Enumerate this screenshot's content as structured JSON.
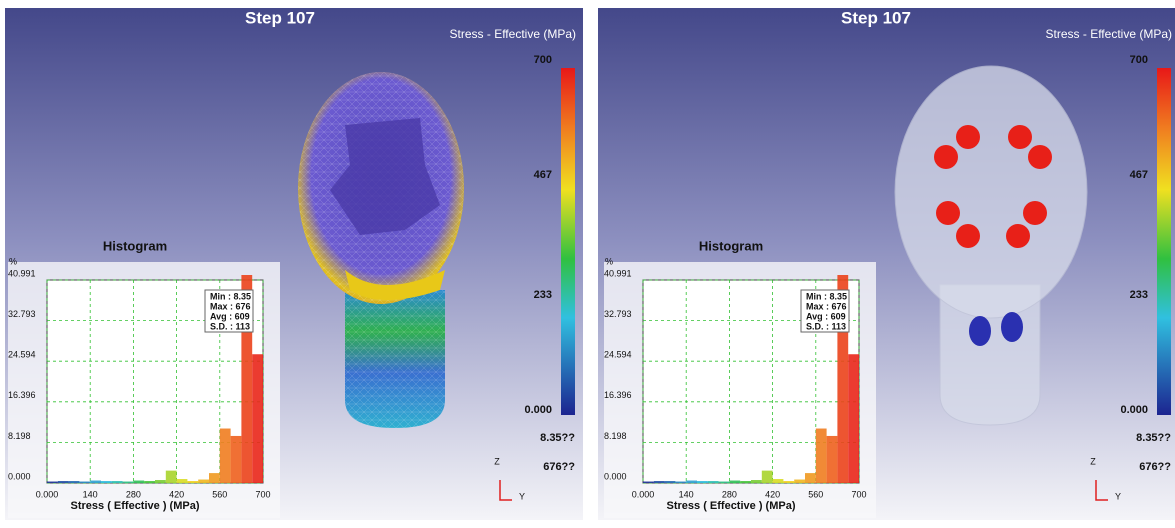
{
  "panels": [
    {
      "title": "Step 107",
      "legend": {
        "title": "Stress - Effective (MPa)",
        "labels": [
          "700",
          "467",
          "233",
          "0.000"
        ],
        "min_label": "8.35??",
        "max_label": "676??"
      },
      "histogram": {
        "title": "Histogram",
        "y_label": "%",
        "x_label": "Stress ( Effective ) (MPa)",
        "stats": [
          "Min : 8.35",
          "Max : 676",
          "Avg : 609",
          "S.D. : 113"
        ],
        "xlim": [
          0,
          700
        ],
        "ylim": [
          0,
          40.991
        ],
        "xticks": [
          {
            "value": 0,
            "label": "0.000"
          },
          140,
          280,
          420,
          560,
          700
        ],
        "yticks": [
          {
            "value": 0,
            "label": "0.000"
          },
          8.198,
          16.396,
          24.594,
          32.793,
          40.991
        ],
        "bins": [
          0,
          35,
          70,
          105,
          140,
          175,
          210,
          245,
          280,
          315,
          350,
          385,
          420,
          455,
          490,
          525,
          560,
          595,
          630,
          665,
          700
        ],
        "values": [
          0.3,
          0.4,
          0.4,
          0.3,
          0.5,
          0.4,
          0.4,
          0.3,
          0.5,
          0.4,
          0.6,
          2.5,
          0.8,
          0.4,
          0.7,
          2.0,
          11.0,
          9.5,
          42.0,
          26.0
        ]
      },
      "triad": {
        "z": "Z",
        "y": "Y"
      }
    },
    {
      "title": "Step 107",
      "legend": {
        "title": "Stress - Effective (MPa)",
        "labels": [
          "700",
          "467",
          "233",
          "0.000"
        ],
        "min_label": "8.35??",
        "max_label": "676??"
      },
      "histogram": {
        "title": "Histogram",
        "y_label": "%",
        "x_label": "Stress ( Effective ) (MPa)",
        "stats": [
          "Min : 8.35",
          "Max : 676",
          "Avg : 609",
          "S.D. : 113"
        ],
        "xlim": [
          0,
          700
        ],
        "ylim": [
          0,
          40.991
        ],
        "xticks": [
          {
            "value": 0,
            "label": "0.000"
          },
          140,
          280,
          420,
          560,
          700
        ],
        "yticks": [
          {
            "value": 0,
            "label": "0.000"
          },
          8.198,
          16.396,
          24.594,
          32.793,
          40.991
        ],
        "bins": [
          0,
          35,
          70,
          105,
          140,
          175,
          210,
          245,
          280,
          315,
          350,
          385,
          420,
          455,
          490,
          525,
          560,
          595,
          630,
          665,
          700
        ],
        "values": [
          0.3,
          0.4,
          0.4,
          0.3,
          0.5,
          0.4,
          0.4,
          0.3,
          0.5,
          0.4,
          0.6,
          2.5,
          0.8,
          0.4,
          0.7,
          2.0,
          11.0,
          9.5,
          42.0,
          26.0
        ]
      },
      "triad": {
        "z": "Z",
        "y": "Y"
      }
    }
  ]
}
